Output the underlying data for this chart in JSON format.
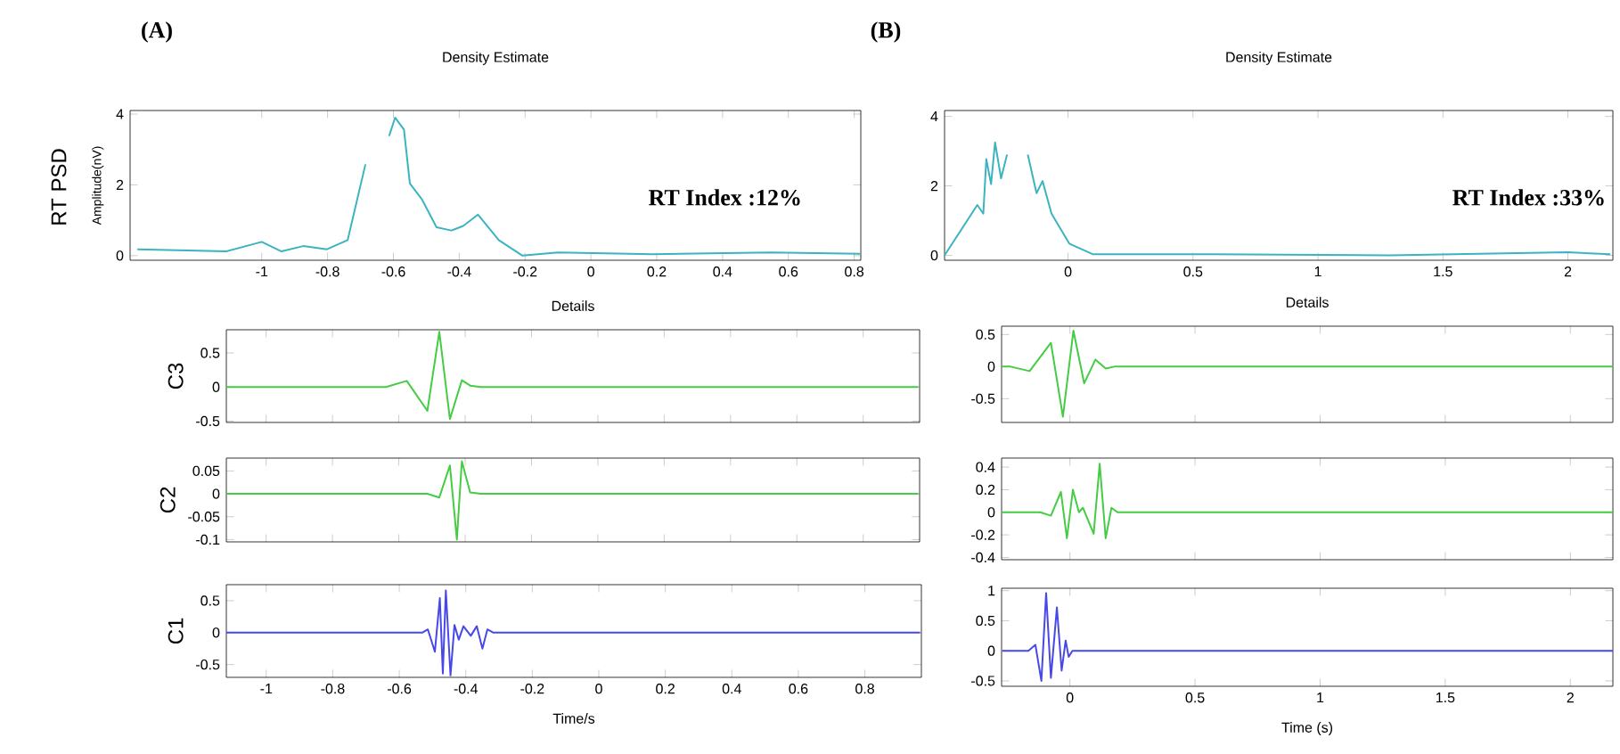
{
  "chart_data": [
    {
      "type": "line",
      "title": "Density Estimate",
      "ylabel": "Amplitude(nV)",
      "xlim": [
        -1.4,
        0.82
      ],
      "ylim": [
        -0.13,
        4.1
      ],
      "xticks": [
        -1,
        -0.8,
        -0.6,
        -0.4,
        -0.2,
        0,
        0.2,
        0.4,
        0.6,
        0.8
      ],
      "yticks": [
        0,
        2,
        4
      ],
      "annotations": [
        "(A)",
        "RT PSD",
        "RT Index :12%"
      ],
      "series": [
        {
          "color": "#3cb4c0",
          "x": [
            -1.378,
            -1.108,
            -1.0,
            -0.94,
            -0.874,
            -0.802,
            -0.739,
            -0.685,
            -0.649,
            -0.622,
            -0.613,
            -0.595,
            -0.568,
            -0.55,
            -0.514,
            -0.469,
            -0.424,
            -0.388,
            -0.343,
            -0.28,
            -0.208,
            -0.1,
            0.188,
            0.548,
            0.818
          ],
          "values": [
            0.18,
            0.12,
            0.39,
            0.12,
            0.27,
            0.18,
            0.44,
            2.58,
            null,
            null,
            3.38,
            3.9,
            3.56,
            2.04,
            1.6,
            0.8,
            0.71,
            0.84,
            1.16,
            0.44,
            0,
            0.09,
            0.04,
            0.09,
            0.05
          ]
        }
      ]
    },
    {
      "type": "line",
      "title": "Details",
      "ylabel": "C3",
      "xlim": [
        -1.12,
        0.97
      ],
      "ylim": [
        -0.52,
        0.84
      ],
      "xticks": [
        -1,
        -0.8,
        -0.6,
        -0.4,
        -0.2,
        0,
        0.2,
        0.4,
        0.6,
        0.8
      ],
      "yticks": [
        -0.5,
        0,
        0.5
      ],
      "tick_labels": "y",
      "series": [
        {
          "color": "#44cc44",
          "x": [
            -1.12,
            -0.639,
            -0.576,
            -0.514,
            -0.478,
            -0.446,
            -0.41,
            -0.385,
            -0.353,
            0.966
          ],
          "values": [
            0,
            0,
            0.09,
            -0.35,
            0.81,
            -0.47,
            0.1,
            0.02,
            0,
            0
          ]
        }
      ]
    },
    {
      "type": "line",
      "ylabel": "C2",
      "xlim": [
        -1.12,
        0.97
      ],
      "ylim": [
        -0.105,
        0.078
      ],
      "xticks": [
        -1,
        -0.8,
        -0.6,
        -0.4,
        -0.2,
        0,
        0.2,
        0.4,
        0.6,
        0.8
      ],
      "yticks": [
        -0.1,
        -0.05,
        0,
        0.05
      ],
      "tick_labels": "y",
      "series": [
        {
          "color": "#44cc44",
          "x": [
            -1.12,
            -0.514,
            -0.478,
            -0.446,
            -0.425,
            -0.41,
            -0.385,
            -0.353,
            0.966
          ],
          "values": [
            0,
            0,
            -0.008,
            0.062,
            -0.1,
            0.071,
            0.003,
            0,
            0
          ]
        }
      ]
    },
    {
      "type": "line",
      "xlabel": "Time/s",
      "ylabel": "C1",
      "xlim": [
        -1.12,
        0.97
      ],
      "ylim": [
        -0.7,
        0.75
      ],
      "xticks": [
        -1,
        -0.8,
        -0.6,
        -0.4,
        -0.2,
        0,
        0.2,
        0.4,
        0.6,
        0.8
      ],
      "yticks": [
        -0.5,
        0,
        0.5
      ],
      "series": [
        {
          "color": "#4848e8",
          "x": [
            -1.12,
            -0.531,
            -0.514,
            -0.493,
            -0.478,
            -0.469,
            -0.46,
            -0.446,
            -0.434,
            -0.421,
            -0.407,
            -0.385,
            -0.367,
            -0.35,
            -0.335,
            -0.317,
            0.966
          ],
          "values": [
            0,
            0,
            0.05,
            -0.3,
            0.54,
            -0.64,
            0.66,
            -0.67,
            0.12,
            -0.11,
            0.1,
            -0.05,
            0.1,
            -0.25,
            0.05,
            0,
            0
          ]
        }
      ]
    },
    {
      "type": "line",
      "title": "Density Estimate",
      "xlim": [
        -0.494,
        2.18
      ],
      "ylim": [
        -0.14,
        4.17
      ],
      "xticks": [
        0,
        0.5,
        1,
        1.5,
        2
      ],
      "yticks": [
        0,
        2,
        4
      ],
      "annotations": [
        "(B)",
        "RT Index :33%"
      ],
      "series": [
        {
          "color": "#3cb4c0",
          "x": [
            -0.494,
            -0.363,
            -0.339,
            -0.327,
            -0.308,
            -0.292,
            -0.268,
            -0.244,
            -0.22,
            -0.197,
            -0.161,
            -0.126,
            -0.102,
            -0.066,
            0.005,
            0.1,
            0.575,
            1.288,
            2.0,
            2.17
          ],
          "values": [
            0,
            1.45,
            1.2,
            2.77,
            2.05,
            3.25,
            2.22,
            2.9,
            null,
            null,
            2.9,
            1.79,
            2.14,
            1.2,
            0.34,
            0.03,
            0.03,
            0,
            0.09,
            0.03
          ]
        }
      ]
    },
    {
      "type": "line",
      "title": "Details",
      "xlim": [
        -0.273,
        2.17
      ],
      "ylim": [
        -0.87,
        0.63
      ],
      "xticks": [
        0,
        0.5,
        1,
        1.5,
        2
      ],
      "yticks": [
        -0.5,
        0,
        0.5
      ],
      "tick_labels": "y",
      "series": [
        {
          "color": "#44cc44",
          "x": [
            -0.273,
            -0.237,
            -0.161,
            -0.076,
            -0.028,
            0.014,
            0.057,
            0.102,
            0.143,
            0.178,
            2.17
          ],
          "values": [
            0,
            0,
            -0.07,
            0.37,
            -0.78,
            0.56,
            -0.26,
            0.11,
            -0.03,
            0,
            0
          ]
        }
      ]
    },
    {
      "type": "line",
      "xlim": [
        -0.273,
        2.17
      ],
      "ylim": [
        -0.42,
        0.48
      ],
      "xticks": [
        0,
        0.5,
        1,
        1.5,
        2
      ],
      "yticks": [
        -0.4,
        -0.2,
        0,
        0.2,
        0.4
      ],
      "tick_labels": "y",
      "series": [
        {
          "color": "#44cc44",
          "x": [
            -0.273,
            -0.119,
            -0.076,
            -0.036,
            -0.012,
            0.012,
            0.036,
            0.052,
            0.095,
            0.119,
            0.143,
            0.166,
            0.19,
            2.17
          ],
          "values": [
            0,
            0,
            -0.03,
            0.18,
            -0.23,
            0.2,
            0,
            0.04,
            -0.19,
            0.43,
            -0.23,
            0.04,
            0,
            0
          ]
        }
      ]
    },
    {
      "type": "line",
      "xlabel": "Time (s)",
      "xlim": [
        -0.273,
        2.17
      ],
      "ylim": [
        -0.59,
        1.04
      ],
      "xticks": [
        0,
        0.5,
        1,
        1.5,
        2
      ],
      "yticks": [
        -0.5,
        0,
        0.5,
        1
      ],
      "series": [
        {
          "color": "#4848e8",
          "x": [
            -0.27,
            -0.166,
            -0.138,
            -0.114,
            -0.095,
            -0.076,
            -0.052,
            -0.033,
            -0.017,
            -0.005,
            0.01,
            2.17
          ],
          "values": [
            0,
            0,
            0.1,
            -0.5,
            0.96,
            -0.45,
            0.72,
            -0.33,
            0.17,
            -0.1,
            0,
            0
          ]
        }
      ]
    }
  ]
}
